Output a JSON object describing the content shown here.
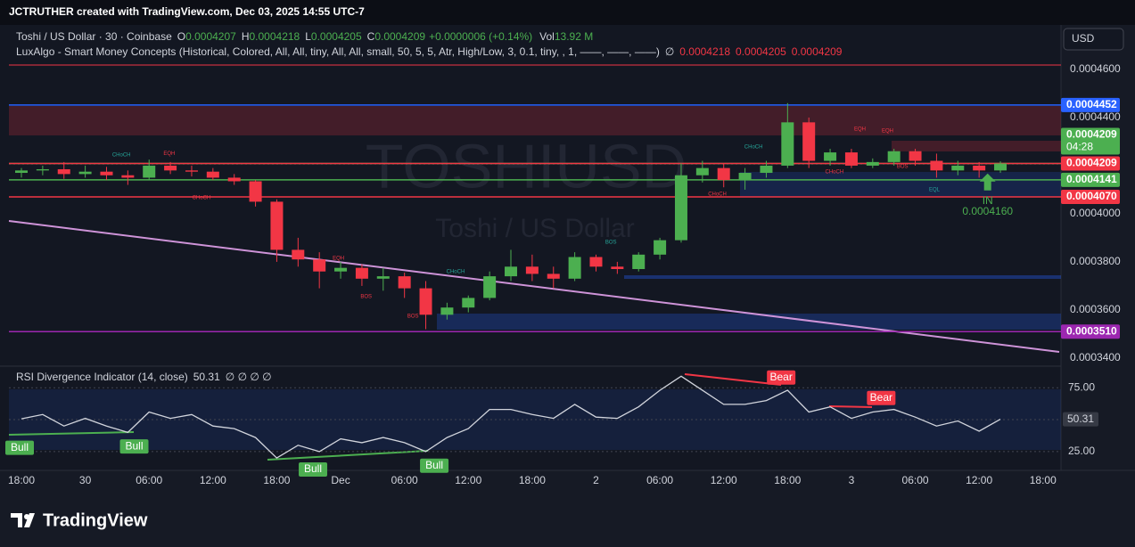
{
  "header": {
    "caption": "JCTRUTHER created with TradingView.com, Dec 03, 2025 14:55 UTC-7",
    "currency_button": "USD",
    "footer_brand": "TradingView"
  },
  "chart_data": {
    "type": "candlestick",
    "legend": {
      "symbol": "Toshi / US Dollar · 30 · Coinbase",
      "o_label": "O",
      "o": "0.0004207",
      "h_label": "H",
      "h": "0.0004218",
      "l_label": "L",
      "l": "0.0004205",
      "c_label": "C",
      "c": "0.0004209",
      "change": "+0.0000006 (+0.14%)",
      "vol_label": "Vol",
      "vol": "13.92 M"
    },
    "indicator": {
      "name": "LuxAlgo - Smart Money Concepts (Historical, Colored, All, All, tiny, All, All, small, 50, 5, 5, Atr, High/Low, 3, 0.1, tiny, , 1, ——, ——, ——)",
      "empty": "∅",
      "v1": "0.0004218",
      "v2": "0.0004205",
      "v3": "0.0004209"
    },
    "watermark": "TOSHIUSD",
    "watermark_sub": "Toshi / US Dollar",
    "categories": [
      "18:00",
      null,
      null,
      "30",
      null,
      null,
      "06:00",
      null,
      null,
      "12:00",
      null,
      null,
      "18:00",
      null,
      null,
      "Dec",
      null,
      null,
      "06:00",
      null,
      null,
      "12:00",
      null,
      null,
      "18:00",
      null,
      null,
      "2",
      null,
      null,
      "06:00",
      null,
      null,
      "12:00",
      null,
      null,
      "18:00",
      null,
      null,
      "3",
      null,
      null,
      "06:00",
      null,
      null,
      "12:00",
      null,
      null,
      "18:00"
    ],
    "open": [
      0.000417,
      0.000418,
      0.0004185,
      0.0004165,
      0.0004175,
      0.000416,
      0.000415,
      0.00042,
      0.000418,
      0.0004175,
      0.000415,
      0.0004135,
      0.000405,
      0.000385,
      0.000381,
      0.000376,
      0.0003775,
      0.000373,
      0.000374,
      0.000369,
      0.000358,
      0.000361,
      0.000365,
      0.000374,
      0.000378,
      0.000375,
      0.000373,
      0.000382,
      0.000378,
      0.000377,
      0.000383,
      0.000389,
      0.000416,
      0.000419,
      0.000414,
      0.000417,
      0.00042,
      0.000438,
      0.000422,
      0.0004255,
      0.00042,
      0.0004215,
      0.000426,
      0.000422,
      0.000418,
      0.00042,
      0.000418,
      null,
      null
    ],
    "high": [
      0.000419,
      0.00042,
      0.0004215,
      0.00042,
      0.0004195,
      0.000418,
      0.0004225,
      0.0004215,
      0.00042,
      0.000419,
      0.0004165,
      0.000414,
      0.000406,
      0.00039,
      0.000384,
      0.00038,
      0.000379,
      0.0003775,
      0.0003755,
      0.000372,
      0.000363,
      0.000366,
      0.000376,
      0.000385,
      0.000383,
      0.000378,
      0.000384,
      0.000383,
      0.00038,
      0.000384,
      0.00039,
      0.000421,
      0.000422,
      0.000421,
      0.000419,
      0.000422,
      0.000446,
      0.00044,
      0.000427,
      0.000427,
      0.000423,
      0.000427,
      0.000427,
      0.000425,
      0.000422,
      0.0004215,
      0.0004218,
      null,
      null
    ],
    "low": [
      0.000415,
      0.000416,
      0.0004145,
      0.000415,
      0.000414,
      0.000412,
      0.000414,
      0.0004165,
      0.0004155,
      0.000414,
      0.000412,
      0.000403,
      0.00038,
      0.000378,
      0.000369,
      0.000373,
      0.00037,
      0.000368,
      0.000365,
      0.000352,
      0.000356,
      0.000359,
      0.000364,
      0.000372,
      0.000372,
      0.000369,
      0.000372,
      0.000376,
      0.000375,
      0.000376,
      0.000381,
      0.000388,
      0.000413,
      0.000411,
      0.00041,
      0.000415,
      0.000419,
      0.000419,
      0.00042,
      0.000419,
      0.000419,
      0.00042,
      0.00042,
      0.000415,
      0.000416,
      0.000415,
      0.000417,
      null,
      null
    ],
    "close": [
      0.000418,
      0.0004185,
      0.0004165,
      0.0004175,
      0.000416,
      0.000415,
      0.00042,
      0.000418,
      0.0004175,
      0.000415,
      0.0004135,
      0.000405,
      0.000385,
      0.000381,
      0.000376,
      0.0003775,
      0.000373,
      0.000374,
      0.000369,
      0.000358,
      0.000361,
      0.000365,
      0.000374,
      0.000378,
      0.000375,
      0.000373,
      0.000382,
      0.000378,
      0.000377,
      0.000383,
      0.000389,
      0.000416,
      0.000419,
      0.000414,
      0.000417,
      0.00042,
      0.000438,
      0.000422,
      0.0004255,
      0.00042,
      0.0004215,
      0.000426,
      0.000422,
      0.000418,
      0.00042,
      0.000418,
      0.0004209,
      null,
      null
    ],
    "up_color": "#4caf50",
    "down_color": "#f23645",
    "ylim": [
      0.000337,
      0.0004785
    ],
    "yticks": [
      {
        "value": 0.00046,
        "label": "0.0004600"
      },
      {
        "value": 0.00044,
        "label": "0.0004400"
      },
      {
        "value": 0.0004,
        "label": "0.0004000"
      },
      {
        "value": 0.00038,
        "label": "0.0003800"
      },
      {
        "value": 0.00036,
        "label": "0.0003600"
      },
      {
        "value": 0.00034,
        "label": "0.0003400"
      }
    ],
    "grid": false,
    "levels": [
      {
        "value": 0.0004452,
        "color": "#2962ff"
      },
      {
        "value": 0.0004209,
        "color": "#4caf50",
        "countdown": "04:28"
      },
      {
        "value": 0.0004209,
        "color": "#f23645"
      },
      {
        "value": 0.0004141,
        "color": "#4caf50"
      },
      {
        "value": 0.000407,
        "label": "0.0004070",
        "color": "#f23645"
      },
      {
        "value": 0.000351,
        "label": "0.0003510",
        "color": "#9c27b0"
      }
    ],
    "annotations": [
      {
        "text": "CHoCH",
        "x": 4.7,
        "y": 0.0004245,
        "color": "#26a69a"
      },
      {
        "text": "EQH",
        "x": 6.95,
        "y": 0.000425,
        "color": "#f23645"
      },
      {
        "text": "CHoCH",
        "x": 8.46,
        "y": 0.0004067,
        "color": "#f23645"
      },
      {
        "text": "EQH",
        "x": 14.9,
        "y": 0.0003815,
        "color": "#f23645"
      },
      {
        "text": "BOS",
        "x": 16.2,
        "y": 0.0003656,
        "color": "#f23645"
      },
      {
        "text": "BOS",
        "x": 18.4,
        "y": 0.0003574,
        "color": "#f23645"
      },
      {
        "text": "CHoCH",
        "x": 20.4,
        "y": 0.0003759,
        "color": "#26a69a"
      },
      {
        "text": "BOS",
        "x": 27.7,
        "y": 0.0003882,
        "color": "#26a69a"
      },
      {
        "text": "CHoCH",
        "x": 32.7,
        "y": 0.0004081,
        "color": "#f23645"
      },
      {
        "text": "CHoCH",
        "x": 34.4,
        "y": 0.0004278,
        "color": "#26a69a"
      },
      {
        "text": "CHoCH",
        "x": 38.2,
        "y": 0.0004174,
        "color": "#f23645"
      },
      {
        "text": "EQH",
        "x": 39.4,
        "y": 0.0004352,
        "color": "#f23645"
      },
      {
        "text": "EQH",
        "x": 40.7,
        "y": 0.0004344,
        "color": "#f23645"
      },
      {
        "text": "BOS",
        "x": 41.4,
        "y": 0.0004196,
        "color": "#f23645"
      },
      {
        "text": "EQL",
        "x": 42.9,
        "y": 0.00041,
        "color": "#26a69a"
      }
    ],
    "entry": {
      "label": "IN",
      "x": 45.4,
      "value": 0.000416,
      "value_label": "0.0004160",
      "color": "#4caf50"
    },
    "rsi": {
      "title": "RSI Divergence Indicator (14, close)",
      "current": "50.31",
      "empty": "∅ ∅ ∅ ∅",
      "color": "#d1d4dc",
      "values": [
        50.7,
        54,
        45,
        51,
        45,
        40,
        56,
        51,
        54,
        45,
        43,
        36,
        20,
        30,
        25,
        35,
        32,
        36,
        32,
        25,
        36,
        43,
        58,
        58,
        54,
        51,
        62,
        52,
        51,
        60,
        73,
        84,
        73,
        62,
        62,
        65,
        73,
        56,
        60,
        51,
        56,
        58,
        52,
        45,
        49,
        41,
        50.31,
        null,
        null
      ],
      "ylim": [
        10.3,
        91.2
      ],
      "yticks": [
        {
          "value": 75,
          "label": "75.00"
        },
        {
          "value": 25,
          "label": "25.00"
        }
      ],
      "signals": [
        {
          "text": "Bull",
          "x": -0.17,
          "y": 28,
          "color": "#4caf50"
        },
        {
          "text": "Bull",
          "x": 5.3,
          "y": 29,
          "color": "#4caf50"
        },
        {
          "text": "Bull",
          "x": 13.7,
          "y": 11,
          "color": "#4caf50"
        },
        {
          "text": "Bull",
          "x": 19.4,
          "y": 14,
          "color": "#4caf50"
        },
        {
          "text": "Bear",
          "x": 35.7,
          "y": 83,
          "color": "#f23645"
        },
        {
          "text": "Bear",
          "x": 40.4,
          "y": 67,
          "color": "#f23645"
        }
      ]
    }
  }
}
